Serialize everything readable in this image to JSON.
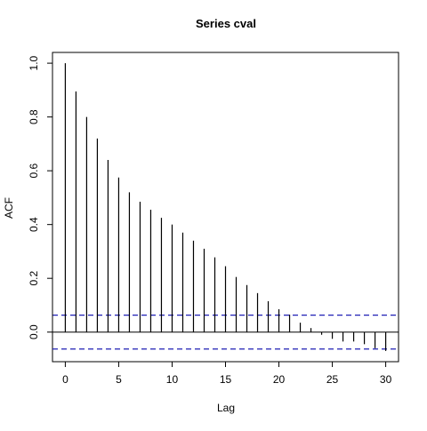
{
  "chart_data": {
    "type": "bar",
    "style": "acf-spikes",
    "title": "Series  cval",
    "xlabel": "Lag",
    "ylabel": "ACF",
    "x": [
      0,
      1,
      2,
      3,
      4,
      5,
      6,
      7,
      8,
      9,
      10,
      11,
      12,
      13,
      14,
      15,
      16,
      17,
      18,
      19,
      20,
      21,
      22,
      23,
      24,
      25,
      26,
      27,
      28,
      29,
      30
    ],
    "values": [
      1.0,
      0.895,
      0.8,
      0.72,
      0.64,
      0.575,
      0.52,
      0.485,
      0.455,
      0.425,
      0.4,
      0.37,
      0.34,
      0.31,
      0.278,
      0.245,
      0.205,
      0.175,
      0.145,
      0.115,
      0.085,
      0.065,
      0.035,
      0.015,
      -0.01,
      -0.025,
      -0.035,
      -0.035,
      -0.045,
      -0.06,
      -0.07
    ],
    "confidence_band": 0.063,
    "xlim": [
      -1.2,
      31.2
    ],
    "ylim": [
      -0.11,
      1.04
    ],
    "x_ticks": [
      0,
      5,
      10,
      15,
      20,
      25,
      30
    ],
    "x_tick_labels": [
      "0",
      "5",
      "10",
      "15",
      "20",
      "25",
      "30"
    ],
    "y_ticks": [
      0.0,
      0.2,
      0.4,
      0.6,
      0.8,
      1.0
    ],
    "y_tick_labels": [
      "0.0",
      "0.2",
      "0.4",
      "0.6",
      "0.8",
      "1.0"
    ],
    "grid": false,
    "colors": {
      "spike": "#000000",
      "confidence_line": "#1f1fb4",
      "axis": "#000000"
    }
  }
}
